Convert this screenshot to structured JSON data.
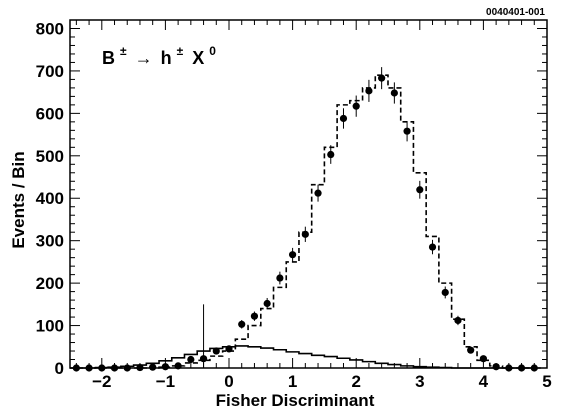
{
  "figure_id": "0040401-001",
  "chart_data": {
    "type": "histogram",
    "title": "",
    "xlabel": "Fisher Discriminant",
    "ylabel": "Events / Bin",
    "xlim": [
      -2.5,
      5
    ],
    "ylim": [
      0,
      820
    ],
    "x_ticks": [
      -2,
      -1,
      0,
      1,
      2,
      3,
      4,
      5
    ],
    "y_ticks": [
      0,
      100,
      200,
      300,
      400,
      500,
      600,
      700,
      800
    ],
    "grid": false,
    "annotation": {
      "base": "B",
      "base_sup": "±",
      "arrow": "→",
      "product": "h",
      "product_sup": "±",
      "particle": "X",
      "particle_sup": "0"
    },
    "bin_edges": [
      -2.5,
      -2.3,
      -2.1,
      -1.9,
      -1.7,
      -1.5,
      -1.3,
      -1.1,
      -0.9,
      -0.7,
      -0.5,
      -0.3,
      -0.1,
      0.1,
      0.3,
      0.5,
      0.7,
      0.9,
      1.1,
      1.3,
      1.5,
      1.7,
      1.9,
      2.1,
      2.3,
      2.5,
      2.7,
      2.9,
      3.1,
      3.3,
      3.5,
      3.7,
      3.9,
      4.1,
      4.3,
      4.5,
      4.7,
      4.9
    ],
    "series": [
      {
        "style": "points",
        "x": [
          -2.4,
          -2.2,
          -2.0,
          -1.8,
          -1.6,
          -1.4,
          -1.2,
          -1.0,
          -0.8,
          -0.6,
          -0.4,
          -0.2,
          0.0,
          0.2,
          0.4,
          0.6,
          0.8,
          1.0,
          1.2,
          1.4,
          1.6,
          1.8,
          2.0,
          2.2,
          2.4,
          2.6,
          2.8,
          3.0,
          3.2,
          3.4,
          3.6,
          3.8,
          4.0,
          4.2,
          4.4,
          4.6,
          4.8
        ],
        "values": [
          0,
          0,
          0,
          0,
          0,
          1,
          2,
          3,
          5,
          20,
          22,
          40,
          45,
          103,
          122,
          152,
          212,
          267,
          315,
          412,
          503,
          588,
          617,
          653,
          683,
          648,
          558,
          420,
          285,
          178,
          112,
          42,
          22,
          3,
          0,
          0,
          0
        ],
        "errors": [
          0,
          0,
          0,
          0,
          0,
          1,
          2,
          2,
          3,
          5,
          128,
          7,
          7,
          10,
          11,
          13,
          15,
          16,
          18,
          20,
          22,
          24,
          25,
          26,
          26,
          25,
          24,
          21,
          17,
          14,
          11,
          7,
          5,
          2,
          0,
          0,
          0
        ]
      },
      {
        "style": "dashed-step",
        "values": [
          0,
          0,
          0,
          0,
          0,
          0,
          0,
          2,
          5,
          12,
          18,
          28,
          40,
          68,
          100,
          140,
          190,
          250,
          320,
          432,
          520,
          620,
          630,
          660,
          690,
          660,
          580,
          460,
          310,
          200,
          115,
          50,
          18,
          5,
          0,
          0,
          0
        ]
      },
      {
        "style": "solid-step",
        "values": [
          0,
          0,
          1,
          2,
          4,
          7,
          11,
          17,
          24,
          32,
          40,
          46,
          50,
          52,
          50,
          47,
          43,
          38,
          34,
          30,
          27,
          23,
          19,
          15,
          11,
          8,
          5,
          3,
          2,
          1,
          0,
          0,
          0,
          0,
          0,
          0,
          0
        ]
      }
    ]
  }
}
